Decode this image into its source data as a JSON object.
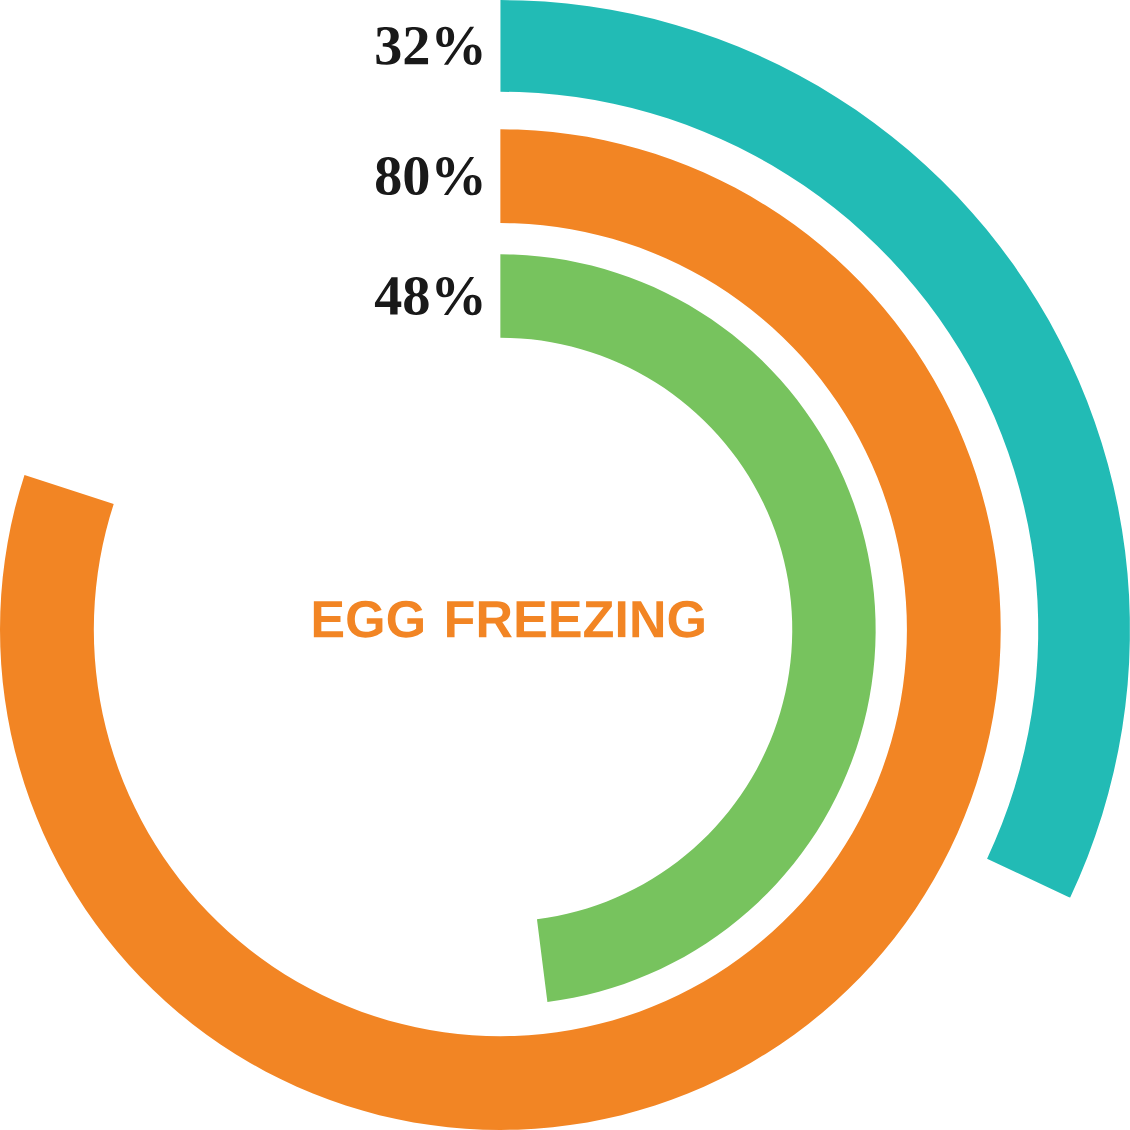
{
  "chart_data": {
    "type": "other",
    "title": "EGG FREEZING",
    "categories": [
      null,
      null,
      null
    ],
    "values": [
      32,
      80,
      48
    ],
    "colors": [
      "#22bbb5",
      "#f28524",
      "#77c35e"
    ],
    "value_labels": [
      "32%",
      "80%",
      "48%"
    ]
  }
}
